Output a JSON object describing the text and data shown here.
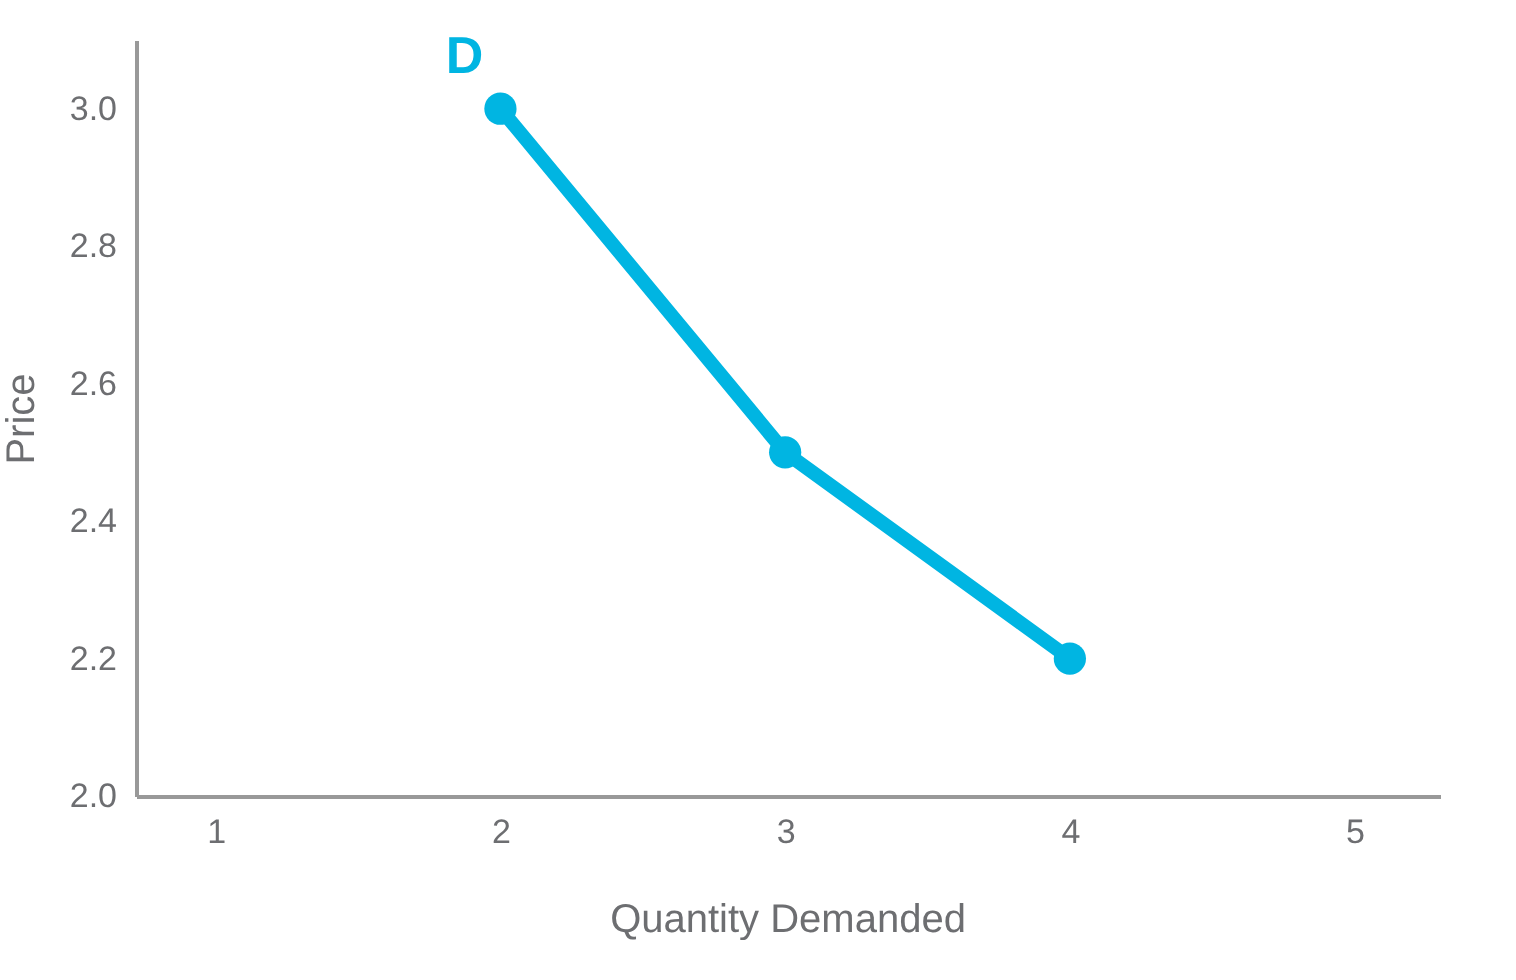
{
  "chart_data": {
    "type": "line",
    "xlabel": "Quantity Demanded",
    "ylabel": "Price",
    "x": [
      2,
      3,
      4
    ],
    "series": [
      {
        "name": "D",
        "color": "#00b5e2",
        "values": [
          3.0,
          2.5,
          2.2
        ]
      }
    ],
    "xlim": [
      0.72,
      5.3
    ],
    "xticks": [
      1,
      2,
      3,
      4,
      5
    ],
    "ylim": [
      2.0,
      3.1
    ],
    "yticks": [
      {
        "value": 2,
        "label": "2.0"
      },
      2.2,
      2.4,
      2.6,
      2.8,
      {
        "value": 3,
        "label": "3.0"
      }
    ],
    "grid": false,
    "legend": false,
    "marker": "circle",
    "line_style": "solid"
  }
}
